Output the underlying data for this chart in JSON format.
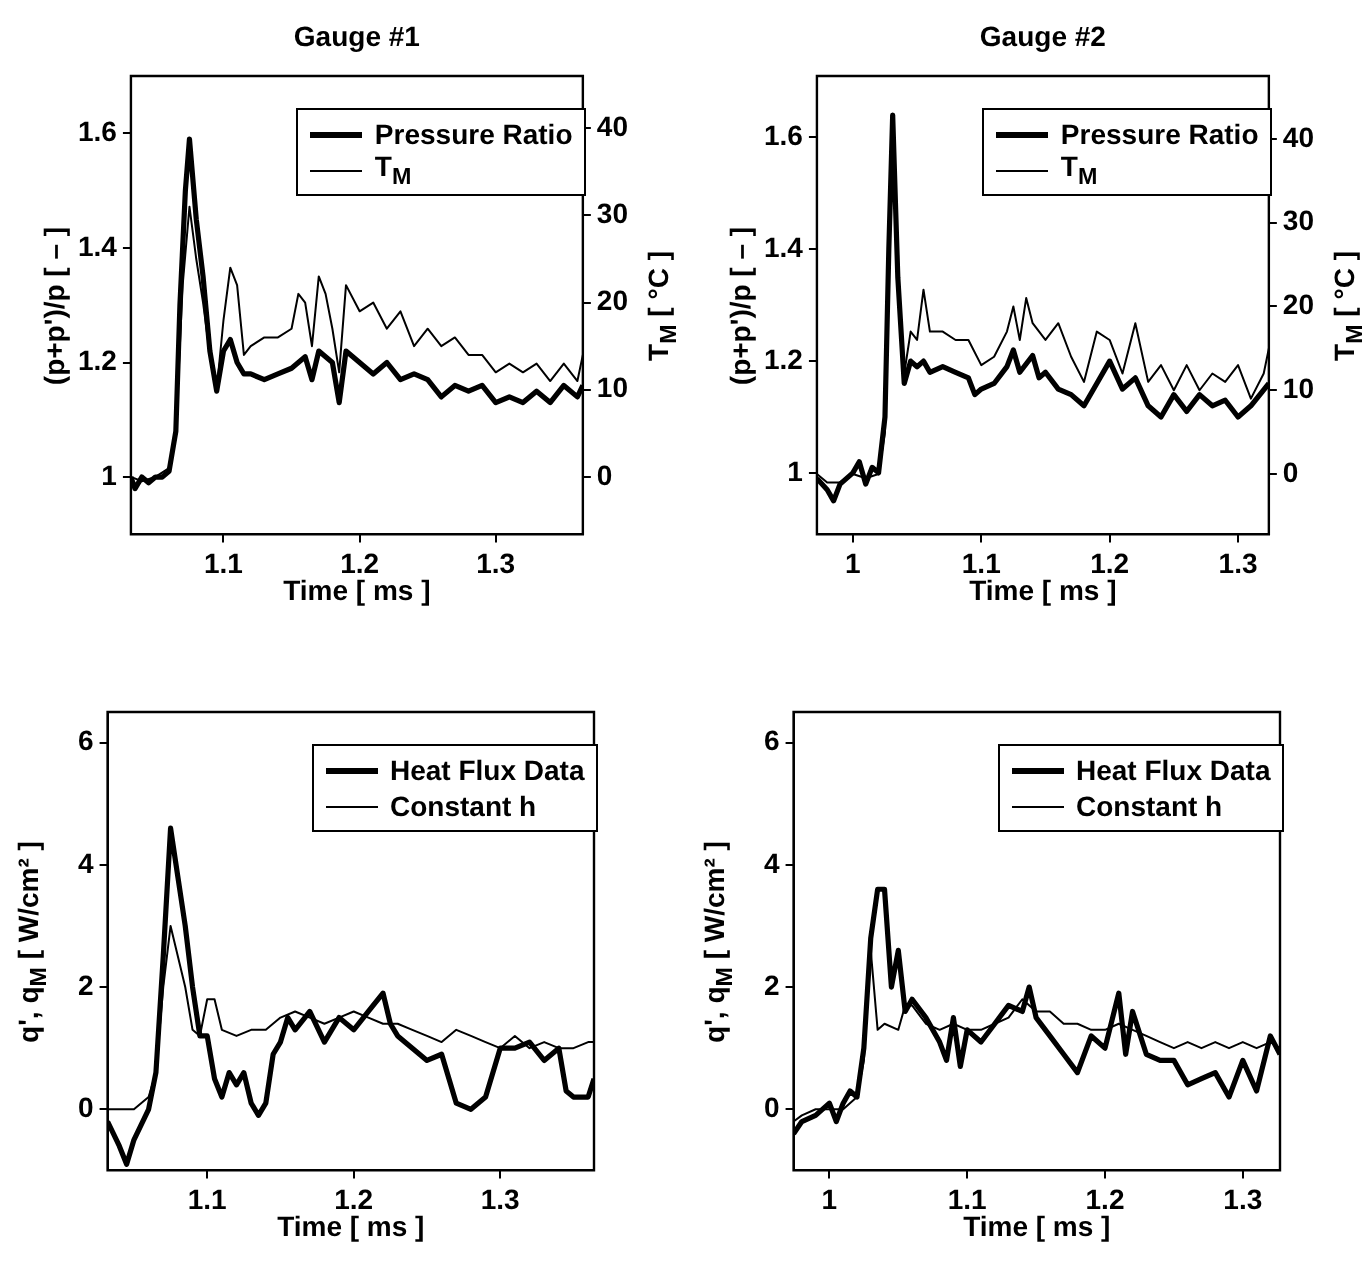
{
  "chart_data": [
    {
      "type": "line",
      "title": "Gauge #1",
      "xlabel": "Time  [ ms ]",
      "ylabel": "(p+p')/p  [ – ]",
      "y2label": "T$_{M}$  [ °C ]",
      "xlim": [
        1.032,
        1.364
      ],
      "xticks": [
        1.1,
        1.2,
        1.3
      ],
      "ylim": [
        0.9,
        1.7
      ],
      "yticks": [
        1,
        1.2,
        1.4,
        1.6
      ],
      "y2lim": [
        -6.6,
        46
      ],
      "y2ticks": [
        0,
        10,
        20,
        30,
        40
      ],
      "grid": false,
      "legend": "top right",
      "marker": "none",
      "line_style": "solid",
      "series": [
        {
          "name": "Pressure Ratio",
          "color": "#000000",
          "x": [
            1.032,
            1.035,
            1.04,
            1.045,
            1.05,
            1.055,
            1.06,
            1.065,
            1.068,
            1.072,
            1.075,
            1.08,
            1.085,
            1.09,
            1.095,
            1.1,
            1.105,
            1.11,
            1.115,
            1.12,
            1.13,
            1.14,
            1.15,
            1.16,
            1.165,
            1.17,
            1.18,
            1.185,
            1.19,
            1.2,
            1.21,
            1.22,
            1.23,
            1.24,
            1.25,
            1.26,
            1.27,
            1.28,
            1.29,
            1.3,
            1.31,
            1.32,
            1.33,
            1.34,
            1.35,
            1.36,
            1.364
          ],
          "values": [
            1.0,
            0.98,
            1.0,
            0.99,
            1.0,
            1.0,
            1.01,
            1.08,
            1.3,
            1.5,
            1.59,
            1.45,
            1.35,
            1.22,
            1.15,
            1.22,
            1.24,
            1.2,
            1.18,
            1.18,
            1.17,
            1.18,
            1.19,
            1.21,
            1.17,
            1.22,
            1.2,
            1.13,
            1.22,
            1.2,
            1.18,
            1.2,
            1.17,
            1.18,
            1.17,
            1.14,
            1.16,
            1.15,
            1.16,
            1.13,
            1.14,
            1.13,
            1.15,
            1.13,
            1.16,
            1.14,
            1.16
          ]
        },
        {
          "name": "T$_{M}$",
          "color": "#000000",
          "axis": "y2",
          "x": [
            1.032,
            1.04,
            1.05,
            1.06,
            1.065,
            1.07,
            1.075,
            1.08,
            1.085,
            1.09,
            1.095,
            1.1,
            1.105,
            1.11,
            1.115,
            1.12,
            1.13,
            1.14,
            1.15,
            1.155,
            1.16,
            1.165,
            1.17,
            1.175,
            1.18,
            1.185,
            1.19,
            1.2,
            1.21,
            1.22,
            1.23,
            1.24,
            1.25,
            1.26,
            1.27,
            1.28,
            1.29,
            1.3,
            1.31,
            1.32,
            1.33,
            1.34,
            1.35,
            1.36,
            1.364
          ],
          "values": [
            0,
            -0.5,
            0,
            1,
            5,
            22,
            31,
            25,
            20,
            14,
            10,
            18,
            24,
            22,
            14,
            15,
            16,
            16,
            17,
            21,
            20,
            15,
            23,
            21,
            17,
            12,
            22,
            19,
            20,
            17,
            19,
            15,
            17,
            15,
            16,
            14,
            14,
            12,
            13,
            12,
            13,
            11,
            13,
            11,
            14
          ]
        }
      ]
    },
    {
      "type": "line",
      "title": "Gauge #2",
      "xlabel": "Time  [ ms ]",
      "ylabel": "(p+p')/p  [ – ]",
      "y2label": "T$_{M}$  [ °C ]",
      "xlim": [
        0.972,
        1.324
      ],
      "xticks": [
        1,
        1.1,
        1.2,
        1.3
      ],
      "ylim": [
        0.89,
        1.71
      ],
      "yticks": [
        1,
        1.2,
        1.4,
        1.6
      ],
      "y2lim": [
        -7.2,
        47.5
      ],
      "y2ticks": [
        0,
        10,
        20,
        30,
        40
      ],
      "grid": false,
      "legend": "top right",
      "marker": "none",
      "line_style": "solid",
      "series": [
        {
          "name": "Pressure Ratio",
          "color": "#000000",
          "x": [
            0.972,
            0.98,
            0.985,
            0.99,
            1.0,
            1.005,
            1.01,
            1.015,
            1.02,
            1.025,
            1.028,
            1.031,
            1.035,
            1.04,
            1.045,
            1.05,
            1.055,
            1.06,
            1.07,
            1.08,
            1.09,
            1.095,
            1.1,
            1.11,
            1.12,
            1.125,
            1.13,
            1.14,
            1.145,
            1.15,
            1.16,
            1.17,
            1.18,
            1.19,
            1.2,
            1.21,
            1.22,
            1.23,
            1.24,
            1.25,
            1.26,
            1.27,
            1.28,
            1.29,
            1.3,
            1.31,
            1.324
          ],
          "values": [
            0.99,
            0.97,
            0.95,
            0.98,
            1.0,
            1.02,
            0.98,
            1.01,
            1.0,
            1.1,
            1.4,
            1.64,
            1.35,
            1.16,
            1.2,
            1.19,
            1.2,
            1.18,
            1.19,
            1.18,
            1.17,
            1.14,
            1.15,
            1.16,
            1.19,
            1.22,
            1.18,
            1.21,
            1.17,
            1.18,
            1.15,
            1.14,
            1.12,
            1.16,
            1.2,
            1.15,
            1.17,
            1.12,
            1.1,
            1.14,
            1.11,
            1.14,
            1.12,
            1.13,
            1.1,
            1.12,
            1.16
          ]
        },
        {
          "name": "T$_{M}$",
          "color": "#000000",
          "axis": "y2",
          "x": [
            0.972,
            0.98,
            0.99,
            1.0,
            1.01,
            1.02,
            1.025,
            1.028,
            1.031,
            1.035,
            1.04,
            1.045,
            1.05,
            1.055,
            1.06,
            1.07,
            1.08,
            1.09,
            1.1,
            1.11,
            1.12,
            1.125,
            1.13,
            1.135,
            1.14,
            1.15,
            1.16,
            1.17,
            1.18,
            1.19,
            1.2,
            1.21,
            1.22,
            1.23,
            1.24,
            1.25,
            1.26,
            1.27,
            1.28,
            1.29,
            1.3,
            1.31,
            1.32,
            1.324
          ],
          "values": [
            0,
            -1,
            -1,
            0,
            -0.5,
            0,
            5,
            25,
            40,
            25,
            12,
            17,
            16,
            22,
            17,
            17,
            16,
            16,
            13,
            14,
            17,
            20,
            16,
            21,
            18,
            16,
            18,
            14,
            11,
            17,
            16,
            12,
            18,
            11,
            13,
            10,
            13,
            10,
            12,
            11,
            13,
            9,
            12,
            15
          ]
        }
      ]
    },
    {
      "type": "line",
      "xlabel": "Time  [ ms ]",
      "ylabel": "q', q$_{M}$  [ W/cm² ]",
      "xlim": [
        1.032,
        1.364
      ],
      "xticks": [
        1.1,
        1.2,
        1.3
      ],
      "ylim": [
        -1,
        6.5
      ],
      "yticks": [
        0,
        2,
        4,
        6
      ],
      "grid": false,
      "legend": "top right",
      "marker": "none",
      "line_style": "solid",
      "series": [
        {
          "name": "Heat Flux Data",
          "color": "#000000",
          "x": [
            1.032,
            1.04,
            1.045,
            1.05,
            1.06,
            1.065,
            1.07,
            1.075,
            1.08,
            1.085,
            1.09,
            1.095,
            1.1,
            1.105,
            1.11,
            1.115,
            1.12,
            1.125,
            1.13,
            1.135,
            1.14,
            1.145,
            1.15,
            1.155,
            1.16,
            1.17,
            1.18,
            1.19,
            1.2,
            1.21,
            1.22,
            1.225,
            1.23,
            1.24,
            1.25,
            1.26,
            1.265,
            1.27,
            1.28,
            1.29,
            1.3,
            1.31,
            1.32,
            1.33,
            1.34,
            1.345,
            1.35,
            1.36,
            1.364
          ],
          "values": [
            -0.2,
            -0.6,
            -0.9,
            -0.5,
            0,
            0.6,
            2.5,
            4.6,
            3.8,
            3.0,
            2.0,
            1.2,
            1.2,
            0.5,
            0.2,
            0.6,
            0.4,
            0.6,
            0.1,
            -0.1,
            0.1,
            0.9,
            1.1,
            1.5,
            1.3,
            1.6,
            1.1,
            1.5,
            1.3,
            1.6,
            1.9,
            1.4,
            1.2,
            1.0,
            0.8,
            0.9,
            0.5,
            0.1,
            0,
            0.2,
            1.0,
            1.0,
            1.1,
            0.8,
            1.0,
            0.3,
            0.2,
            0.2,
            0.5
          ]
        },
        {
          "name": "Constant h",
          "color": "#000000",
          "x": [
            1.032,
            1.04,
            1.05,
            1.06,
            1.065,
            1.07,
            1.075,
            1.08,
            1.085,
            1.09,
            1.095,
            1.1,
            1.105,
            1.11,
            1.12,
            1.13,
            1.14,
            1.15,
            1.16,
            1.17,
            1.18,
            1.19,
            1.2,
            1.21,
            1.22,
            1.23,
            1.24,
            1.25,
            1.26,
            1.27,
            1.28,
            1.29,
            1.3,
            1.31,
            1.32,
            1.33,
            1.34,
            1.35,
            1.36,
            1.364
          ],
          "values": [
            0,
            0,
            0,
            0.2,
            0.6,
            2.0,
            3.0,
            2.5,
            2.0,
            1.3,
            1.2,
            1.8,
            1.8,
            1.3,
            1.2,
            1.3,
            1.3,
            1.5,
            1.6,
            1.5,
            1.4,
            1.5,
            1.6,
            1.5,
            1.4,
            1.4,
            1.3,
            1.2,
            1.1,
            1.3,
            1.2,
            1.1,
            1.0,
            1.2,
            1.0,
            1.1,
            1.0,
            1.0,
            1.1,
            1.1
          ]
        }
      ]
    },
    {
      "type": "line",
      "xlabel": "Time  [ ms ]",
      "ylabel": "q', q$_{M}$  [ W/cm² ]",
      "xlim": [
        0.974,
        1.327
      ],
      "xticks": [
        1,
        1.1,
        1.2,
        1.3
      ],
      "ylim": [
        -1,
        6.5
      ],
      "yticks": [
        0,
        2,
        4,
        6
      ],
      "grid": false,
      "legend": "top right",
      "marker": "none",
      "line_style": "solid",
      "series": [
        {
          "name": "Heat Flux Data",
          "color": "#000000",
          "x": [
            0.974,
            0.98,
            0.99,
            1.0,
            1.005,
            1.01,
            1.015,
            1.02,
            1.025,
            1.03,
            1.035,
            1.04,
            1.045,
            1.05,
            1.055,
            1.06,
            1.07,
            1.08,
            1.085,
            1.09,
            1.095,
            1.1,
            1.11,
            1.12,
            1.13,
            1.14,
            1.145,
            1.15,
            1.16,
            1.17,
            1.18,
            1.19,
            1.2,
            1.21,
            1.215,
            1.22,
            1.23,
            1.24,
            1.25,
            1.26,
            1.27,
            1.28,
            1.29,
            1.3,
            1.31,
            1.32,
            1.327
          ],
          "values": [
            -0.4,
            -0.2,
            -0.1,
            0.1,
            -0.2,
            0.1,
            0.3,
            0.2,
            1.0,
            2.8,
            3.6,
            3.6,
            2.0,
            2.6,
            1.6,
            1.8,
            1.5,
            1.1,
            0.8,
            1.5,
            0.7,
            1.3,
            1.1,
            1.4,
            1.7,
            1.6,
            2.0,
            1.5,
            1.2,
            0.9,
            0.6,
            1.2,
            1.0,
            1.9,
            0.9,
            1.6,
            0.9,
            0.8,
            0.8,
            0.4,
            0.5,
            0.6,
            0.2,
            0.8,
            0.3,
            1.2,
            0.9
          ]
        },
        {
          "name": "Constant h",
          "color": "#000000",
          "x": [
            0.974,
            0.98,
            0.99,
            1.0,
            1.01,
            1.02,
            1.025,
            1.03,
            1.035,
            1.04,
            1.05,
            1.055,
            1.06,
            1.07,
            1.08,
            1.09,
            1.1,
            1.11,
            1.12,
            1.13,
            1.14,
            1.15,
            1.16,
            1.17,
            1.18,
            1.19,
            1.2,
            1.21,
            1.22,
            1.23,
            1.24,
            1.25,
            1.26,
            1.27,
            1.28,
            1.29,
            1.3,
            1.31,
            1.32,
            1.327
          ],
          "values": [
            -0.2,
            -0.1,
            0,
            0,
            0,
            0.2,
            0.8,
            2.6,
            1.3,
            1.4,
            1.3,
            1.7,
            1.7,
            1.4,
            1.3,
            1.4,
            1.3,
            1.3,
            1.4,
            1.5,
            1.8,
            1.6,
            1.6,
            1.4,
            1.4,
            1.3,
            1.3,
            1.4,
            1.3,
            1.2,
            1.1,
            1.0,
            1.1,
            1.0,
            1.1,
            1.0,
            1.1,
            1.0,
            1.1,
            1.0
          ]
        }
      ]
    }
  ]
}
